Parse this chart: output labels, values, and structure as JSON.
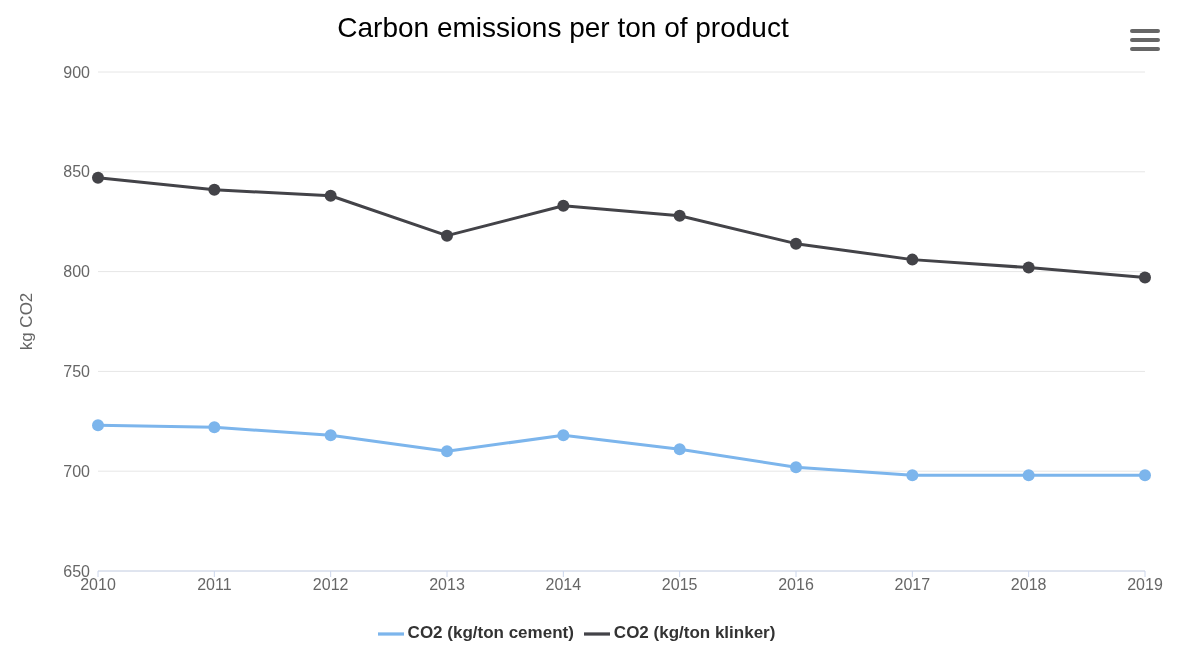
{
  "chart_data": {
    "type": "line",
    "title": "Carbon emissions per ton of product",
    "ylabel": "kg CO2",
    "categories": [
      "2010",
      "2011",
      "2012",
      "2013",
      "2014",
      "2015",
      "2016",
      "2017",
      "2018",
      "2019"
    ],
    "series": [
      {
        "name": "CO2 (kg/ton cement)",
        "color": "#7cb5ec",
        "values": [
          723,
          722,
          718,
          710,
          718,
          711,
          702,
          698,
          698,
          698
        ]
      },
      {
        "name": "CO2 (kg/ton klinker)",
        "color": "#434348",
        "values": [
          847,
          841,
          838,
          818,
          833,
          828,
          814,
          806,
          802,
          797
        ]
      }
    ],
    "ylim": [
      650,
      900
    ],
    "yticks": [
      650,
      700,
      750,
      800,
      850,
      900
    ],
    "grid": "y",
    "legend": "bottom",
    "marker": "circle",
    "line_style": "solid"
  }
}
